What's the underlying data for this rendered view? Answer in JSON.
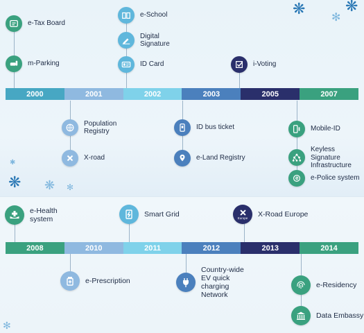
{
  "top": {
    "years": [
      {
        "label": "2000",
        "color": "#47a7c3"
      },
      {
        "label": "2001",
        "color": "#8fb9e0"
      },
      {
        "label": "2002",
        "color": "#7fd2ea"
      },
      {
        "label": "2003",
        "color": "#4b80bd"
      },
      {
        "label": "2005",
        "color": "#2a2f6b"
      },
      {
        "label": "2007",
        "color": "#3aa17f"
      }
    ],
    "items": {
      "etax": "e-Tax Board",
      "mparking": "m-Parking",
      "eschool": "e-School",
      "digsig": "Digital\nSignature",
      "idcard": "ID Card",
      "ivoting": "i-Voting",
      "poprep": "Population\nRegistry",
      "xroad": "X-road",
      "idbus": "ID bus ticket",
      "eland": "e-Land Registry",
      "mobileid": "Mobile-ID",
      "ksi": "Keyless Signature\nInfrastructure",
      "epolice": "e-Police system"
    }
  },
  "bottom": {
    "years": [
      {
        "label": "2008",
        "color": "#3aa17f"
      },
      {
        "label": "2010",
        "color": "#8fb9e0"
      },
      {
        "label": "2011",
        "color": "#7fd2ea"
      },
      {
        "label": "2012",
        "color": "#4b80bd"
      },
      {
        "label": "2013",
        "color": "#2a2f6b"
      },
      {
        "label": "2014",
        "color": "#3aa17f"
      }
    ],
    "items": {
      "ehealth": "e-Health\nsystem",
      "smartgrid": "Smart Grid",
      "xroadeu": "X-Road Europe",
      "xroadeu_badge": "Europe",
      "eprescription": "e-Prescription",
      "evcharging": "Country-wide\nEV quick\ncharging\nNetwork",
      "eresidency": "e-Residency",
      "dataembassy": "Data Embassy"
    }
  },
  "icons": {
    "etax": "tax-board-icon",
    "mparking": "car-phone-icon",
    "eschool": "book-icon",
    "digsig": "pen-signature-icon",
    "idcard": "id-card-icon",
    "ivoting": "checkbox-icon",
    "poprep": "globe-people-icon",
    "xroad": "cross-road-icon",
    "idbus": "bus-ticket-icon",
    "eland": "land-plot-icon",
    "mobileid": "mobile-id-icon",
    "ksi": "network-tree-icon",
    "epolice": "police-badge-icon",
    "ehealth": "health-hands-icon",
    "smartgrid": "smart-grid-icon",
    "xroadeu": "x-road-europe-icon",
    "eprescription": "prescription-bottle-icon",
    "evcharging": "ev-plug-icon",
    "eresidency": "fingerprint-icon",
    "dataembassy": "embassy-building-icon"
  }
}
